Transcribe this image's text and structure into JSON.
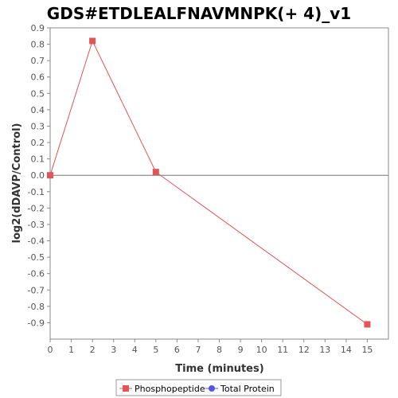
{
  "chart_data": {
    "type": "line",
    "title": "GDS#ETDLEALFNAVMNPK(+ 4)_v1",
    "xlabel": "Time (minutes)",
    "ylabel": "log2(dDAVP/Control)",
    "xlim": [
      0,
      16
    ],
    "ylim": [
      -1.0,
      0.9
    ],
    "x_ticks": [
      0,
      1,
      2,
      3,
      4,
      5,
      6,
      7,
      8,
      9,
      10,
      11,
      12,
      13,
      14,
      15
    ],
    "y_ticks": [
      0.9,
      0.8,
      0.7,
      0.6,
      0.5,
      0.4,
      0.3,
      0.2,
      0.1,
      0.0,
      -0.1,
      -0.2,
      -0.3,
      -0.4,
      -0.5,
      -0.6,
      -0.7,
      -0.8,
      -0.9
    ],
    "y_tick_labels": [
      "0.9",
      "0.8",
      "0.7",
      "0.6",
      "0.5",
      "0.4",
      "0.3",
      "0.2",
      "0.1",
      "0.0",
      "-0.1",
      "-0.2",
      "-0.3",
      "-0.4",
      "-0.5",
      "-0.6",
      "-0.7",
      "-0.8",
      "-0.9"
    ],
    "series": [
      {
        "name": "Phosphopeptide",
        "color": "#e05555",
        "marker": "square",
        "x": [
          0,
          2,
          5,
          15
        ],
        "y": [
          0.0,
          0.82,
          0.02,
          -0.91
        ]
      },
      {
        "name": "Total Protein",
        "color": "#5555e0",
        "marker": "circle",
        "x": [],
        "y": []
      }
    ],
    "zero_line": true,
    "legend_position": "bottom"
  }
}
